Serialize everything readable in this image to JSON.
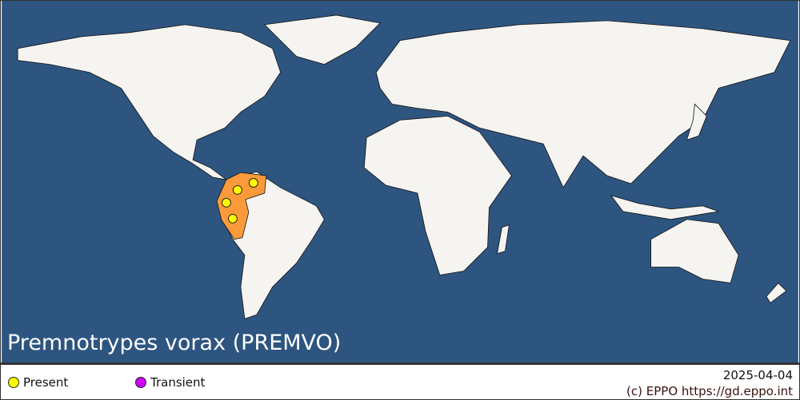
{
  "title": "Premnotrypes vorax (PREMVO)",
  "colors": {
    "ocean": "#2d5580",
    "land": "#f6f4f1",
    "affected_country": "#fb9a3a",
    "present": "#ffff00",
    "transient": "#cc00ff"
  },
  "legend": {
    "items": [
      {
        "label": "Present",
        "color": "#ffff00"
      },
      {
        "label": "Transient",
        "color": "#cc00ff"
      }
    ],
    "date": "2025-04-04",
    "copyright": "(c) EPPO https://gd.eppo.int"
  },
  "map": {
    "affected_countries": [
      "Colombia",
      "Venezuela",
      "Ecuador",
      "Peru"
    ],
    "markers": [
      {
        "status": "Present",
        "location": "Venezuela"
      },
      {
        "status": "Present",
        "location": "Colombia"
      },
      {
        "status": "Present",
        "location": "Ecuador"
      },
      {
        "status": "Present",
        "location": "Peru"
      }
    ]
  }
}
